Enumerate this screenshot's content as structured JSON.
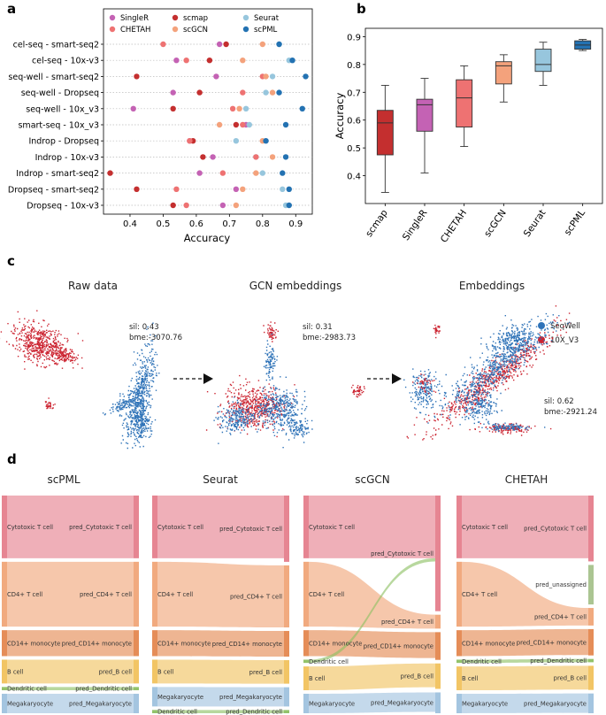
{
  "panel_labels": {
    "a": "a",
    "b": "b",
    "c": "c",
    "d": "d"
  },
  "colors": {
    "SingleR": "#c462b4",
    "scmap": "#c42f2f",
    "Seurat": "#97c6dd",
    "CHETAH": "#ee7272",
    "scGCN": "#f4a27c",
    "scPML": "#2372b2",
    "SeqWell": "#2f73b8",
    "10X_V3": "#cc2431",
    "cyto": "#e57e8c",
    "cd4": "#f0a578",
    "cd14": "#e4874f",
    "bcell": "#f1c25d",
    "dend": "#8dc063",
    "mega": "#9fc2de",
    "unassigned": "#a6c28c"
  },
  "chart_data": [
    {
      "type": "scatter",
      "panel": "a",
      "xlabel": "Accuracy",
      "xlim": [
        0.32,
        0.95
      ],
      "xticks": [
        0.4,
        0.5,
        0.6,
        0.7,
        0.8,
        0.9
      ],
      "xtick_labels": [
        "0.4",
        "0.5",
        "0.6",
        "0.7",
        "0.8",
        "0.9"
      ],
      "legend": {
        "placement": "top",
        "entries": [
          "SingleR",
          "scmap",
          "Seurat",
          "CHETAH",
          "scGCN",
          "scPML"
        ]
      },
      "categories": [
        "cel-seq -  smart-seq2",
        "cel-seq -  10x-v3",
        "seq-well -  smart-seq2",
        "seq-well -  Dropseq",
        "seq-well -  10x_v3",
        "smart-seq -  10x_v3",
        "Indrop -  Dropseq",
        "Indrop -  10x-v3",
        "Indrop -  smart-seq2",
        "Dropseq -  smart-seq2",
        "Dropseq -  10x-v3"
      ],
      "series": [
        {
          "name": "SingleR",
          "values": [
            0.67,
            0.54,
            0.66,
            0.53,
            0.41,
            0.75,
            0.58,
            0.65,
            0.61,
            0.72,
            0.68
          ]
        },
        {
          "name": "scmap",
          "values": [
            0.69,
            0.64,
            0.42,
            0.61,
            0.53,
            0.72,
            0.59,
            0.62,
            0.34,
            0.42,
            0.53
          ]
        },
        {
          "name": "Seurat",
          "values": [
            0.85,
            0.88,
            0.83,
            0.81,
            0.75,
            0.76,
            0.72,
            0.78,
            0.8,
            0.86,
            0.87
          ]
        },
        {
          "name": "CHETAH",
          "values": [
            0.5,
            0.57,
            0.8,
            0.74,
            0.71,
            0.74,
            0.58,
            0.78,
            0.68,
            0.54,
            0.57
          ]
        },
        {
          "name": "scGCN",
          "values": [
            0.8,
            0.74,
            0.81,
            0.83,
            0.73,
            0.67,
            0.8,
            0.83,
            0.78,
            0.74,
            0.72
          ]
        },
        {
          "name": "scPML",
          "values": [
            0.85,
            0.89,
            0.93,
            0.85,
            0.92,
            0.87,
            0.81,
            0.87,
            0.86,
            0.88,
            0.88
          ]
        }
      ]
    },
    {
      "type": "box",
      "panel": "b",
      "ylabel": "Accuracy",
      "ylim": [
        0.3,
        0.93
      ],
      "yticks": [
        0.4,
        0.5,
        0.6,
        0.7,
        0.8,
        0.9
      ],
      "ytick_labels": [
        "0.4",
        "0.5",
        "0.6",
        "0.7",
        "0.8",
        "0.9"
      ],
      "categories": [
        "scmap",
        "SingleR",
        "CHETAH",
        "scGCN",
        "Seurat",
        "scPML"
      ],
      "boxes": [
        {
          "name": "scmap",
          "min": 0.34,
          "q1": 0.475,
          "median": 0.59,
          "q3": 0.635,
          "max": 0.725
        },
        {
          "name": "SingleR",
          "min": 0.41,
          "q1": 0.56,
          "median": 0.655,
          "q3": 0.675,
          "max": 0.75
        },
        {
          "name": "CHETAH",
          "min": 0.505,
          "q1": 0.575,
          "median": 0.68,
          "q3": 0.745,
          "max": 0.795
        },
        {
          "name": "scGCN",
          "min": 0.665,
          "q1": 0.73,
          "median": 0.795,
          "q3": 0.81,
          "max": 0.835
        },
        {
          "name": "Seurat",
          "min": 0.725,
          "q1": 0.775,
          "median": 0.8,
          "q3": 0.855,
          "max": 0.88
        },
        {
          "name": "scPML",
          "min": 0.85,
          "q1": 0.855,
          "median": 0.87,
          "q3": 0.885,
          "max": 0.89
        }
      ]
    }
  ],
  "panel_c": {
    "titles": [
      "Raw data",
      "GCN embeddings",
      "Embeddings"
    ],
    "stats": [
      {
        "sil": "sil: 0.43",
        "bme": "bme:-3070.76"
      },
      {
        "sil": "sil: 0.31",
        "bme": "bme:-2983.73"
      },
      {
        "sil": "sil: 0.62",
        "bme": "bme:-2921.24"
      }
    ],
    "legend": [
      "SeqWell",
      "10X_V3"
    ]
  },
  "panel_d": {
    "titles": [
      "scPML",
      "Seurat",
      "scGCN",
      "CHETAH"
    ],
    "diagrams": [
      {
        "left": [
          "Cytotoxic T cell",
          "CD4+ T cell",
          "CD14+ monocyte",
          "B cell",
          "Dendritic cell",
          "Megakaryocyte"
        ],
        "right": [
          "pred_Cytotoxic T cell",
          "pred_CD4+ T cell",
          "pred_CD14+ monocyte",
          "pred_B cell",
          "pred_Dendritic cell",
          "pred_Megakaryocyte"
        ]
      },
      {
        "left": [
          "Cytotoxic T cell",
          "CD4+ T cell",
          "CD14+ monocyte",
          "B cell",
          "Megakaryocyte",
          "Dendritic cell"
        ],
        "right": [
          "pred_Cytotoxic T cell",
          "pred_CD4+ T cell",
          "pred_CD14+ monocyte",
          "pred_B cell",
          "pred_Megakaryocyte",
          "pred_Dendritic cell"
        ]
      },
      {
        "left": [
          "Cytotoxic T cell",
          "CD4+ T cell",
          "CD14+ monocyte",
          "Dendritic cell",
          "B cell",
          "Megakaryocyte"
        ],
        "right": [
          "pred_Cytotoxic T cell",
          "pred_CD4+ T cell",
          "pred_CD14+ monocyte",
          "pred_B cell",
          "pred_Megakaryocyte"
        ]
      },
      {
        "left": [
          "Cytotoxic T cell",
          "CD4+ T cell",
          "CD14+ monocyte",
          "Dendritic cell",
          "B cell",
          "Megakaryocyte"
        ],
        "right": [
          "pred_Cytotoxic T cell",
          "pred_unassigned",
          "pred_CD4+ T cell",
          "pred_CD14+ monocyte",
          "pred_Dendritic cell",
          "pred_B cell",
          "pred_Megakaryocyte"
        ]
      }
    ]
  }
}
